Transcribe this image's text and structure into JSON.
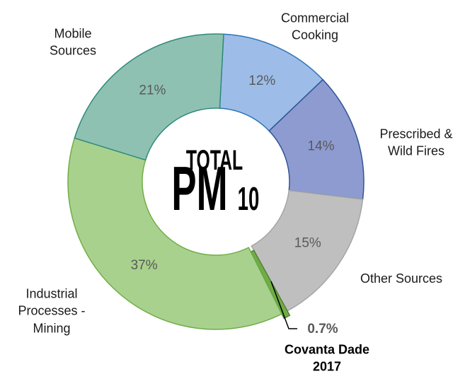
{
  "chart_data": {
    "type": "pie",
    "categories": [
      "Commercial Cooking",
      "Prescribed & Wild Fires",
      "Other Sources",
      "Covanta Dade 2017",
      "Industrial Processes - Mining",
      "Mobile Sources"
    ],
    "values": [
      12,
      14,
      15,
      0.7,
      37,
      21
    ],
    "value_labels": [
      "12%",
      "14%",
      "15%",
      "0.7%",
      "37%",
      "21%"
    ],
    "colors": [
      "#9dbde8",
      "#8e9bd0",
      "#bfbfbf",
      "#70ad47",
      "#a9d18e",
      "#8fc1b3"
    ],
    "center_text": {
      "line1": "TOTAL",
      "main": "PM",
      "sub": "10"
    }
  }
}
